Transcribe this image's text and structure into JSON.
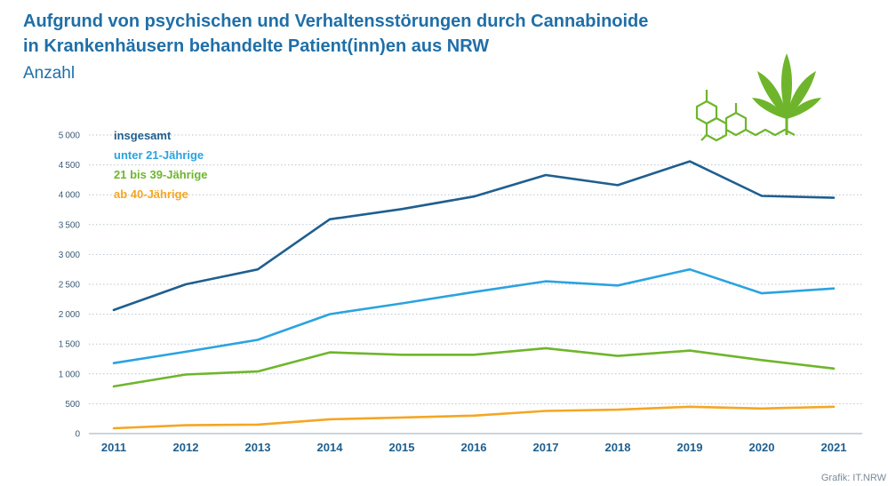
{
  "header": {
    "title_line1": "Aufgrund von psychischen und Verhaltensstörungen durch Cannabinoide",
    "title_line2": "in Krankenhäusern behandelte Patient(inn)en aus NRW",
    "subtitle": "Anzahl"
  },
  "credit": "Grafik: IT.NRW",
  "icons": [
    "cannabinoid-molecule-icon",
    "cannabis-leaf-icon"
  ],
  "chart_data": {
    "type": "line",
    "title": "Aufgrund von psychischen und Verhaltensstörungen durch Cannabinoide in Krankenhäusern behandelte Patient(inn)en aus NRW",
    "ylabel": "Anzahl",
    "xlabel": "",
    "x": [
      "2011",
      "2012",
      "2013",
      "2014",
      "2015",
      "2016",
      "2017",
      "2018",
      "2019",
      "2020",
      "2021"
    ],
    "ylim": [
      0,
      5000
    ],
    "yticks": [
      0,
      500,
      1000,
      1500,
      2000,
      2500,
      3000,
      3500,
      4000,
      4500,
      5000
    ],
    "ytick_labels": [
      "0",
      "500",
      "1000",
      "1500",
      "2000",
      "2500",
      "3000",
      "3500",
      "4000",
      "4500",
      "5000"
    ],
    "grid": "horizontal dotted",
    "legend_position": "top-left",
    "series": [
      {
        "name": "insgesamt",
        "color": "#1f5f8f",
        "values": [
          2070,
          2500,
          2750,
          3590,
          3760,
          3970,
          4330,
          4160,
          4560,
          3980,
          3950
        ]
      },
      {
        "name": "unter 21-Jährige",
        "color": "#2aa3e0",
        "values": [
          1180,
          1370,
          1570,
          2000,
          2180,
          2370,
          2550,
          2480,
          2750,
          2350,
          2430
        ]
      },
      {
        "name": "21 bis 39-Jährige",
        "color": "#6fb52c",
        "values": [
          790,
          990,
          1040,
          1360,
          1320,
          1320,
          1430,
          1300,
          1390,
          1230,
          1090
        ]
      },
      {
        "name": "ab 40-Jährige",
        "color": "#f5a623",
        "values": [
          90,
          140,
          150,
          240,
          270,
          300,
          380,
          400,
          450,
          420,
          450
        ]
      }
    ]
  }
}
